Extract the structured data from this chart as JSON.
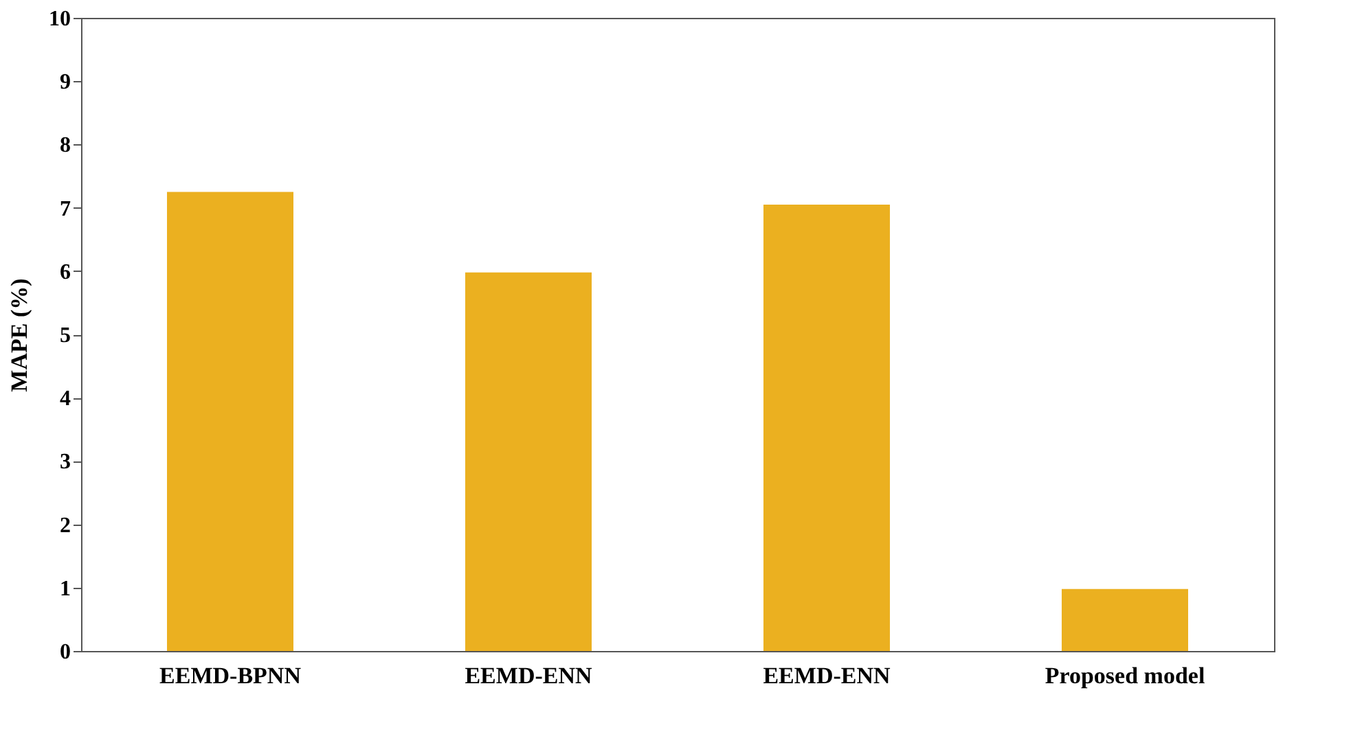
{
  "chart_data": {
    "type": "bar",
    "ylabel": "MAPE (%)",
    "categories": [
      "EEMD-BPNN",
      "EEMD-ENN",
      "EEMD-ENN",
      "Proposed model"
    ],
    "values": [
      7.25,
      5.98,
      7.05,
      0.98
    ],
    "color": "#ebb020",
    "ylim": [
      0,
      10
    ],
    "yticks": [
      0,
      1,
      2,
      3,
      4,
      5,
      6,
      7,
      8,
      9,
      10
    ],
    "grid": false
  }
}
